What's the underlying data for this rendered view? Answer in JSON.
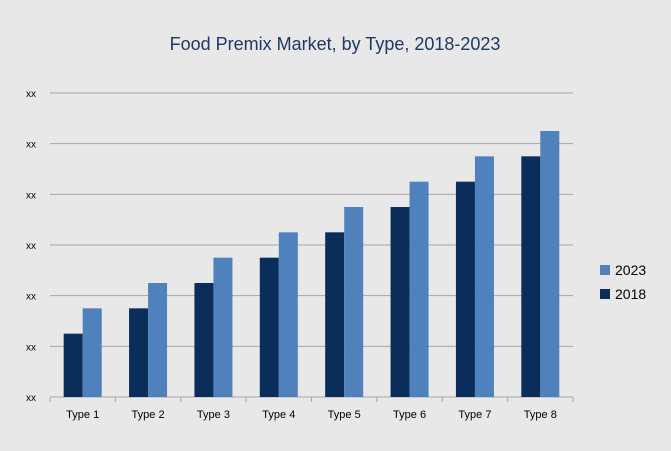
{
  "colors": {
    "background": "#e8e8e8",
    "title": "#1f3864",
    "series_2018": "#0b2d5a",
    "series_2023": "#4f81bd",
    "grid": "#a6a6a6",
    "axis_text": "#000000"
  },
  "chart_data": {
    "type": "bar",
    "title": "Food Premix Market, by Type, 2018-2023",
    "xlabel": "",
    "ylabel": "",
    "categories": [
      "Type 1",
      "Type 2",
      "Type 3",
      "Type 4",
      "Type 5",
      "Type 6",
      "Type 7",
      "Type 8"
    ],
    "y_tick_labels": [
      "xx",
      "xx",
      "xx",
      "xx",
      "xx",
      "xx",
      "xx"
    ],
    "ylim": [
      0,
      6
    ],
    "grid": true,
    "legend_position": "right",
    "series": [
      {
        "name": "2018",
        "values": [
          1.25,
          1.75,
          2.25,
          2.75,
          3.25,
          3.75,
          4.25,
          4.75
        ]
      },
      {
        "name": "2023",
        "values": [
          1.75,
          2.25,
          2.75,
          3.25,
          3.75,
          4.25,
          4.75,
          5.25
        ]
      }
    ],
    "legend": [
      {
        "name": "2023",
        "color_key": "series_2023"
      },
      {
        "name": "2018",
        "color_key": "series_2018"
      }
    ]
  }
}
